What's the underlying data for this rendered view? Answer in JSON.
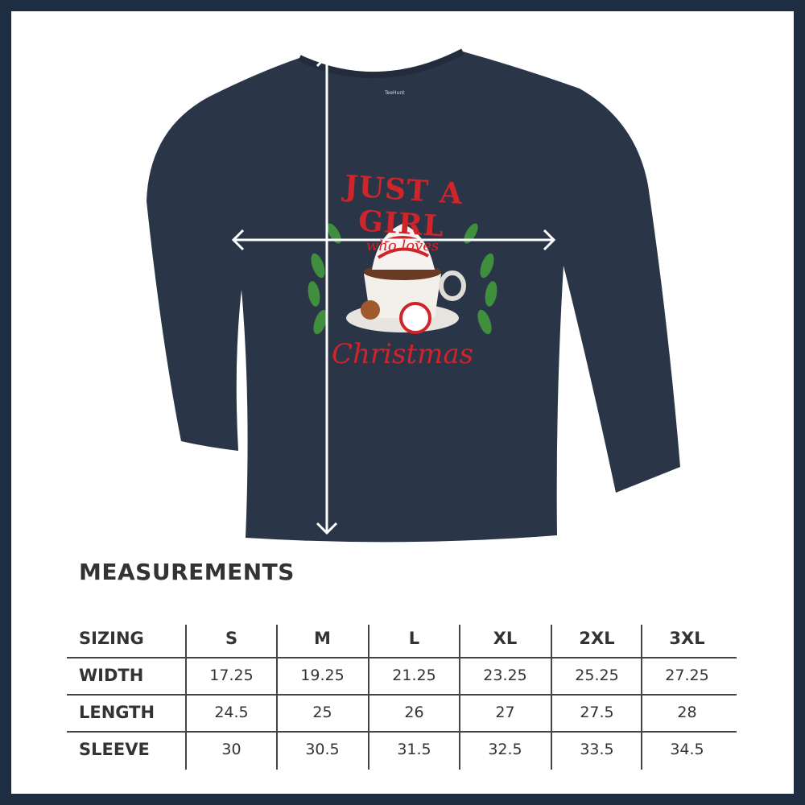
{
  "colors": {
    "frame": "#1f2d42",
    "shirt": "#2a3548",
    "design_red": "#d0242b",
    "leaf_green": "#3f8f3f",
    "text": "#333333"
  },
  "product": {
    "tag_text": "TeeHunt",
    "design_text": [
      "JUST A GIRL",
      "who loves",
      "Christmas"
    ]
  },
  "measurements": {
    "title": "MEASUREMENTS",
    "header_label": "SIZING",
    "sizes": [
      "S",
      "M",
      "L",
      "XL",
      "2XL",
      "3XL"
    ],
    "rows": [
      {
        "label": "WIDTH",
        "values": [
          "17.25",
          "19.25",
          "21.25",
          "23.25",
          "25.25",
          "27.25"
        ]
      },
      {
        "label": "LENGTH",
        "values": [
          "24.5",
          "25",
          "26",
          "27",
          "27.5",
          "28"
        ]
      },
      {
        "label": "SLEEVE",
        "values": [
          "30",
          "30.5",
          "31.5",
          "32.5",
          "33.5",
          "34.5"
        ]
      }
    ]
  }
}
